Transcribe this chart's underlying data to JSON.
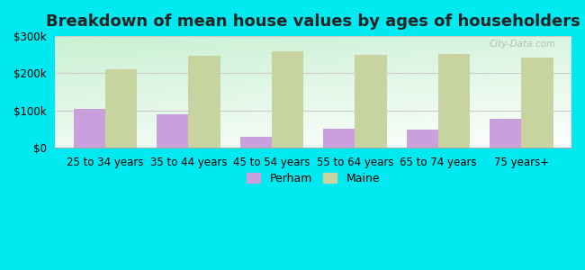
{
  "title": "Breakdown of mean house values by ages of householders",
  "categories": [
    "25 to 34 years",
    "35 to 44 years",
    "45 to 54 years",
    "55 to 64 years",
    "65 to 74 years",
    "75 years+"
  ],
  "perham_values": [
    105000,
    90000,
    30000,
    52000,
    50000,
    78000
  ],
  "maine_values": [
    212000,
    248000,
    258000,
    250000,
    252000,
    243000
  ],
  "perham_color": "#c9a0dc",
  "maine_color": "#c8d4a0",
  "background_outer": "#00e8f0",
  "ylim": [
    0,
    300000
  ],
  "yticks": [
    0,
    100000,
    200000,
    300000
  ],
  "ytick_labels": [
    "$0",
    "$100k",
    "$200k",
    "$300k"
  ],
  "title_fontsize": 13,
  "legend_labels": [
    "Perham",
    "Maine"
  ],
  "bar_width": 0.38,
  "grid_color": "#cccccc",
  "watermark": "City-Data.com"
}
